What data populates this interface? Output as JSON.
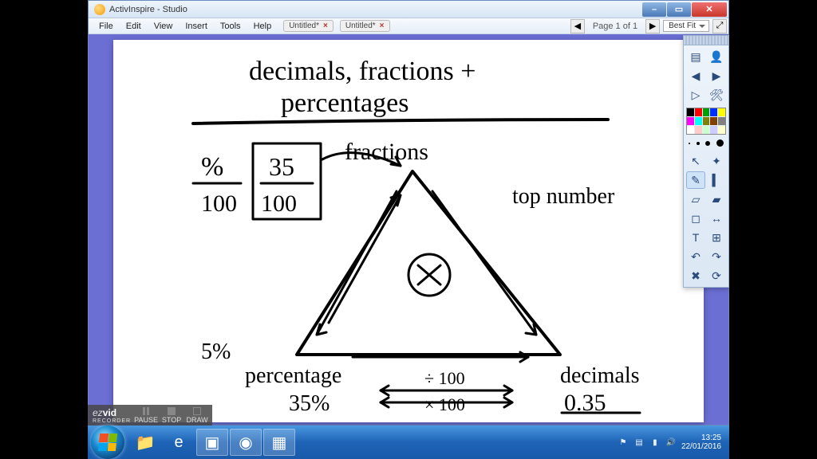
{
  "app": {
    "title": "ActivInspire - Studio"
  },
  "menu": {
    "items": [
      "File",
      "Edit",
      "View",
      "Insert",
      "Tools",
      "Help"
    ]
  },
  "tabs": [
    {
      "label": "Untitled*",
      "closable": true
    },
    {
      "label": "Untitled*",
      "closable": true
    }
  ],
  "page_indicator": "Page 1 of 1",
  "zoom": {
    "selected": "Best Fit"
  },
  "window_buttons": {
    "min": "–",
    "max": "▭",
    "close": "✕"
  },
  "toolbox": {
    "palette_colors": [
      "#000000",
      "#ff0000",
      "#00a000",
      "#0030ff",
      "#ffff00",
      "#ff00ff",
      "#00ffff",
      "#808000",
      "#804000",
      "#808080",
      "#ffffff",
      "#ffcccc",
      "#ccffcc",
      "#ccccff",
      "#ffffcc"
    ],
    "pen_sizes": [
      2,
      4,
      6,
      9
    ],
    "tools": [
      {
        "name": "menu-icon",
        "glyph": "▤"
      },
      {
        "name": "profile-icon",
        "glyph": "👤"
      },
      {
        "name": "prev-icon",
        "glyph": "◀"
      },
      {
        "name": "next-icon",
        "glyph": "▶"
      },
      {
        "name": "play-icon",
        "glyph": "▷"
      },
      {
        "name": "tools-icon",
        "glyph": "🛠"
      },
      {
        "name": "color-icon",
        "glyph": "⬛"
      },
      {
        "name": "thickness-icon",
        "glyph": "•"
      },
      {
        "name": "pointer-icon",
        "glyph": "↖"
      },
      {
        "name": "wand-icon",
        "glyph": "✦"
      },
      {
        "name": "pen-icon",
        "glyph": "✎"
      },
      {
        "name": "highlighter-icon",
        "glyph": "▍"
      },
      {
        "name": "eraser-icon",
        "glyph": "▱"
      },
      {
        "name": "fill-icon",
        "glyph": "▰"
      },
      {
        "name": "shape-icon",
        "glyph": "◻"
      },
      {
        "name": "connector-icon",
        "glyph": "↔"
      },
      {
        "name": "text-icon",
        "glyph": "T"
      },
      {
        "name": "insert-icon",
        "glyph": "⊞"
      },
      {
        "name": "undo-icon",
        "glyph": "↶"
      },
      {
        "name": "redo-icon",
        "glyph": "↷"
      },
      {
        "name": "clear-icon",
        "glyph": "✖"
      },
      {
        "name": "reset-icon",
        "glyph": "⟳"
      }
    ]
  },
  "whiteboard": {
    "stroke_color": "#000000",
    "stroke_width": 3.5,
    "font_family": "'Comic Sans MS','Segoe Script',cursive",
    "title_line1": "decimals, fractions +",
    "title_line2": "percentages",
    "labels": {
      "fractions": "fractions",
      "top_number": "top number",
      "percentage": "percentage",
      "decimals": "decimals",
      "div100": "÷ 100",
      "mul100": "× 100"
    },
    "values": {
      "percent_small": "5%",
      "percent_value": "35%",
      "decimal_value": "0.35",
      "percent_symbol": "%",
      "hundred": "100",
      "frac_num": "35",
      "frac_den": "100"
    }
  },
  "ezvid": {
    "logo_pre": "ez",
    "logo_bold": "vid",
    "sub": "RECORDER",
    "buttons": [
      "PAUSE",
      "STOP",
      "DRAW"
    ]
  },
  "taskbar": {
    "icons": [
      {
        "name": "explorer-icon",
        "glyph": "📁",
        "active": false
      },
      {
        "name": "ie-icon",
        "glyph": "e",
        "active": false
      },
      {
        "name": "ezvid-app-icon",
        "glyph": "▣",
        "active": true
      },
      {
        "name": "activinspire-app-icon",
        "glyph": "◉",
        "active": true
      },
      {
        "name": "app3-icon",
        "glyph": "▦",
        "active": true
      }
    ],
    "tray_icons": [
      {
        "name": "flag-icon",
        "glyph": "⚑"
      },
      {
        "name": "network-icon",
        "glyph": "▤"
      },
      {
        "name": "signal-icon",
        "glyph": "▮"
      },
      {
        "name": "volume-icon",
        "glyph": "🔊"
      }
    ],
    "time": "13:25",
    "date": "22/01/2016"
  }
}
